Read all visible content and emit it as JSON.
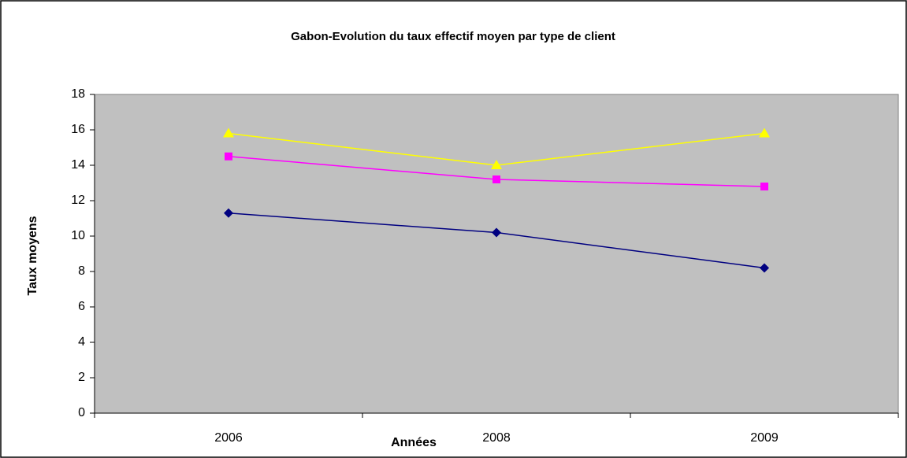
{
  "chart_data": {
    "type": "line",
    "title": "Gabon-Evolution du taux effectif moyen par type de client",
    "x_label": "Années",
    "y_label": "Taux moyens",
    "categories": [
      "2006",
      "2008",
      "2009"
    ],
    "series": [
      {
        "color": "#000080",
        "marker": "diamond",
        "values": [
          11.3,
          10.2,
          8.2
        ]
      },
      {
        "color": "#ff00ff",
        "marker": "square",
        "values": [
          14.5,
          13.2,
          12.8
        ]
      },
      {
        "color": "#ffff00",
        "marker": "triangle",
        "values": [
          15.8,
          14.0,
          15.8
        ]
      }
    ],
    "ylim": [
      0,
      18
    ],
    "yticks": [
      0,
      2,
      4,
      6,
      8,
      10,
      12,
      14,
      16,
      18
    ],
    "plot_background": "#c0c0c0",
    "grid": false
  }
}
